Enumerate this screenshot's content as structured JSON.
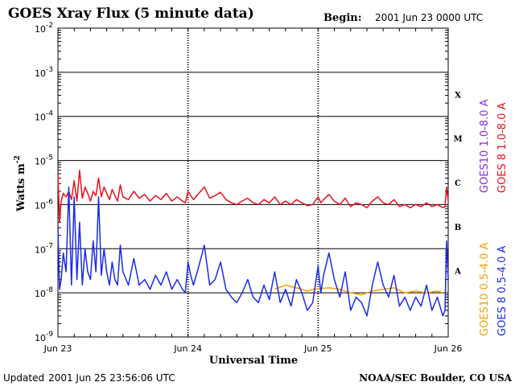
{
  "header": {
    "title": "GOES Xray Flux (5 minute data)",
    "begin_label": "Begin:",
    "begin_value": "2001 Jun 23 0000 UTC"
  },
  "footer": {
    "updated_label": "Updated",
    "updated_value": "2001 Jun 25 23:56:06 UTC",
    "source": "NOAA/SEC Boulder, CO USA"
  },
  "chart_data": {
    "type": "line",
    "title": "GOES Xray Flux (5 minute data)",
    "xlabel": "Universal Time",
    "ylabel_main": "Watts m",
    "ylabel_sup": "-2",
    "yscale": "log",
    "ylim": [
      1e-09,
      0.01
    ],
    "xlim": [
      0,
      72
    ],
    "x_unit": "hours since 2001 Jun 23 00:00 UTC",
    "x_ticks": [
      {
        "x": 0,
        "label": "Jun 23"
      },
      {
        "x": 24,
        "label": "Jun 24"
      },
      {
        "x": 48,
        "label": "Jun 25"
      },
      {
        "x": 72,
        "label": "Jun 26"
      }
    ],
    "y_ticks": [
      {
        "exp": -2,
        "base": "10",
        "sup": "-2"
      },
      {
        "exp": -3,
        "base": "10",
        "sup": "-3"
      },
      {
        "exp": -4,
        "base": "10",
        "sup": "-4"
      },
      {
        "exp": -5,
        "base": "10",
        "sup": "-5"
      },
      {
        "exp": -6,
        "base": "10",
        "sup": "-6"
      },
      {
        "exp": -7,
        "base": "10",
        "sup": "-7"
      },
      {
        "exp": -8,
        "base": "10",
        "sup": "-8"
      },
      {
        "exp": -9,
        "base": "10",
        "sup": "-9"
      }
    ],
    "flare_classes": [
      {
        "label": "X",
        "exp": -3.5
      },
      {
        "label": "M",
        "exp": -4.5
      },
      {
        "label": "C",
        "exp": -5.5
      },
      {
        "label": "B",
        "exp": -6.5
      },
      {
        "label": "A",
        "exp": -7.5
      }
    ],
    "legend_right": [
      {
        "text": "GOES 8 1.0-8.0 A",
        "color": "#e8101f"
      },
      {
        "text": "GOES10 1.0-8.0 A",
        "color": "#8a2be2"
      }
    ],
    "legend_left": [
      {
        "text": "GOES 8 0.5-4.0 A",
        "color": "#1a2be8"
      },
      {
        "text": "GOES10 0.5-4.0 A",
        "color": "#f5a000"
      }
    ],
    "grid": true,
    "series": [
      {
        "name": "GOES 8 1.0-8.0 A",
        "color": "#e8101f",
        "x": [
          0,
          0.3,
          0.6,
          1,
          1.5,
          2,
          2.5,
          3,
          3.5,
          4,
          4.5,
          5,
          5.5,
          6,
          6.5,
          7,
          7.5,
          8,
          8.5,
          9,
          9.5,
          10,
          10.5,
          11,
          11.5,
          12,
          13,
          14,
          15,
          16,
          17,
          18,
          19,
          20,
          21,
          22,
          23,
          23.5,
          24,
          24.5,
          25,
          26,
          27,
          28,
          29,
          30,
          31,
          32,
          33,
          34,
          35,
          36,
          37,
          38,
          39,
          40,
          41,
          42,
          43,
          44,
          45,
          46,
          47,
          48,
          48.5,
          49,
          50,
          51,
          52,
          53,
          54,
          55,
          56,
          57,
          58,
          59,
          60,
          61,
          62,
          63,
          64,
          65,
          66,
          67,
          68,
          69,
          70,
          71,
          71.4,
          71.7,
          72
        ],
        "y": [
          5e-06,
          4e-07,
          1.2e-06,
          1.8e-06,
          1.5e-06,
          2e-06,
          1.3e-06,
          3.5e-06,
          1.2e-06,
          6e-06,
          1.4e-06,
          2.5e-06,
          1.8e-06,
          1.2e-06,
          2e-06,
          1.6e-06,
          4e-06,
          1.5e-06,
          2.5e-06,
          1.8e-06,
          1.3e-06,
          2.2e-06,
          1.6e-06,
          1.2e-06,
          2.8e-06,
          1.5e-06,
          1.3e-06,
          2e-06,
          1.4e-06,
          1.7e-06,
          1.2e-06,
          1.6e-06,
          1.3e-06,
          1.8e-06,
          1.2e-06,
          1.5e-06,
          1.2e-06,
          1.1e-06,
          2e-06,
          1.6e-06,
          1.3e-06,
          1.8e-06,
          2.5e-06,
          1.4e-06,
          1.6e-06,
          1.9e-06,
          1.3e-06,
          1.1e-06,
          1e-06,
          1.2e-06,
          1.4e-06,
          1.1e-06,
          1e-06,
          1.3e-06,
          1.1e-06,
          1.5e-06,
          1e-06,
          1.2e-06,
          1e-06,
          1.3e-06,
          1.1e-06,
          9.5e-07,
          1e-06,
          1.5e-06,
          1.1e-06,
          1.3e-06,
          1.7e-06,
          1.2e-06,
          1e-06,
          1.4e-06,
          9e-07,
          1.1e-06,
          1e-06,
          8.5e-07,
          1.2e-06,
          1.5e-06,
          1.1e-06,
          1e-06,
          1.3e-06,
          9e-07,
          1e-06,
          8.5e-07,
          1e-06,
          9e-07,
          1.1e-06,
          9e-07,
          1e-06,
          8.5e-07,
          9e-07,
          2.5e-06,
          1.2e-06
        ]
      },
      {
        "name": "GOES 8 0.5-4.0 A",
        "color": "#1a2be8",
        "x": [
          0,
          0.3,
          0.6,
          1,
          1.5,
          2,
          2.5,
          3,
          3.5,
          4,
          4.5,
          5,
          5.5,
          6,
          6.5,
          7,
          7.5,
          8,
          8.5,
          9,
          9.5,
          10,
          10.5,
          11,
          11.5,
          12,
          13,
          14,
          15,
          16,
          17,
          18,
          19,
          20,
          21,
          22,
          23,
          23.5,
          24,
          24.5,
          25,
          26,
          27,
          28,
          29,
          30,
          31,
          32,
          33,
          34,
          35,
          36,
          37,
          38,
          39,
          40,
          41,
          42,
          43,
          44,
          45,
          46,
          47,
          48,
          48.5,
          49,
          50,
          51,
          52,
          53,
          54,
          55,
          56,
          57,
          58,
          59,
          60,
          61,
          62,
          63,
          64,
          65,
          66,
          67,
          68,
          69,
          70,
          71,
          71.4,
          71.7,
          72
        ],
        "y": [
          3e-07,
          1.2e-08,
          2e-08,
          8e-08,
          3e-08,
          2.5e-06,
          1.5e-08,
          1.5e-06,
          2e-08,
          4e-07,
          1.5e-08,
          1e-07,
          3e-08,
          2e-08,
          1.5e-07,
          3e-08,
          1.5e-06,
          2.5e-08,
          1e-07,
          3e-08,
          1.5e-08,
          5e-08,
          2e-08,
          1.5e-08,
          1.2e-07,
          3e-08,
          1.5e-08,
          6e-08,
          1.5e-08,
          2e-08,
          1.2e-08,
          2.5e-08,
          1.5e-08,
          3e-08,
          1.2e-08,
          2e-08,
          1.2e-08,
          1e-08,
          5e-08,
          2.5e-08,
          1.5e-08,
          4e-08,
          1.2e-07,
          1.5e-08,
          2e-08,
          5e-08,
          1.2e-08,
          8e-09,
          6e-09,
          1e-08,
          2e-08,
          8e-09,
          6e-09,
          1.5e-08,
          7e-09,
          3e-08,
          6e-09,
          1.2e-08,
          5e-09,
          2e-08,
          1e-08,
          4e-09,
          6e-09,
          4e-08,
          1e-08,
          2.5e-08,
          8e-08,
          2e-08,
          8e-09,
          3e-08,
          4e-09,
          8e-09,
          6e-09,
          3e-09,
          1.5e-08,
          5e-08,
          1.5e-08,
          8e-09,
          2.5e-08,
          5e-09,
          8e-09,
          4e-09,
          8e-09,
          5e-09,
          1.5e-08,
          4e-09,
          8e-09,
          3e-09,
          4e-09,
          1.5e-07,
          2e-08
        ]
      },
      {
        "name": "GOES10 0.5-4.0 A",
        "color": "#f5a000",
        "x": [
          40,
          42,
          44,
          46,
          47,
          50,
          52,
          54,
          56,
          58,
          60,
          62,
          64,
          66,
          68,
          70,
          71
        ],
        "y": [
          1.2e-08,
          1.5e-08,
          1.3e-08,
          1.1e-08,
          1.2e-08,
          1.3e-08,
          1.2e-08,
          1e-08,
          9e-09,
          1.1e-08,
          1.2e-08,
          1.3e-08,
          1e-08,
          1.1e-08,
          1e-08,
          1.1e-08,
          1e-08
        ]
      }
    ]
  }
}
